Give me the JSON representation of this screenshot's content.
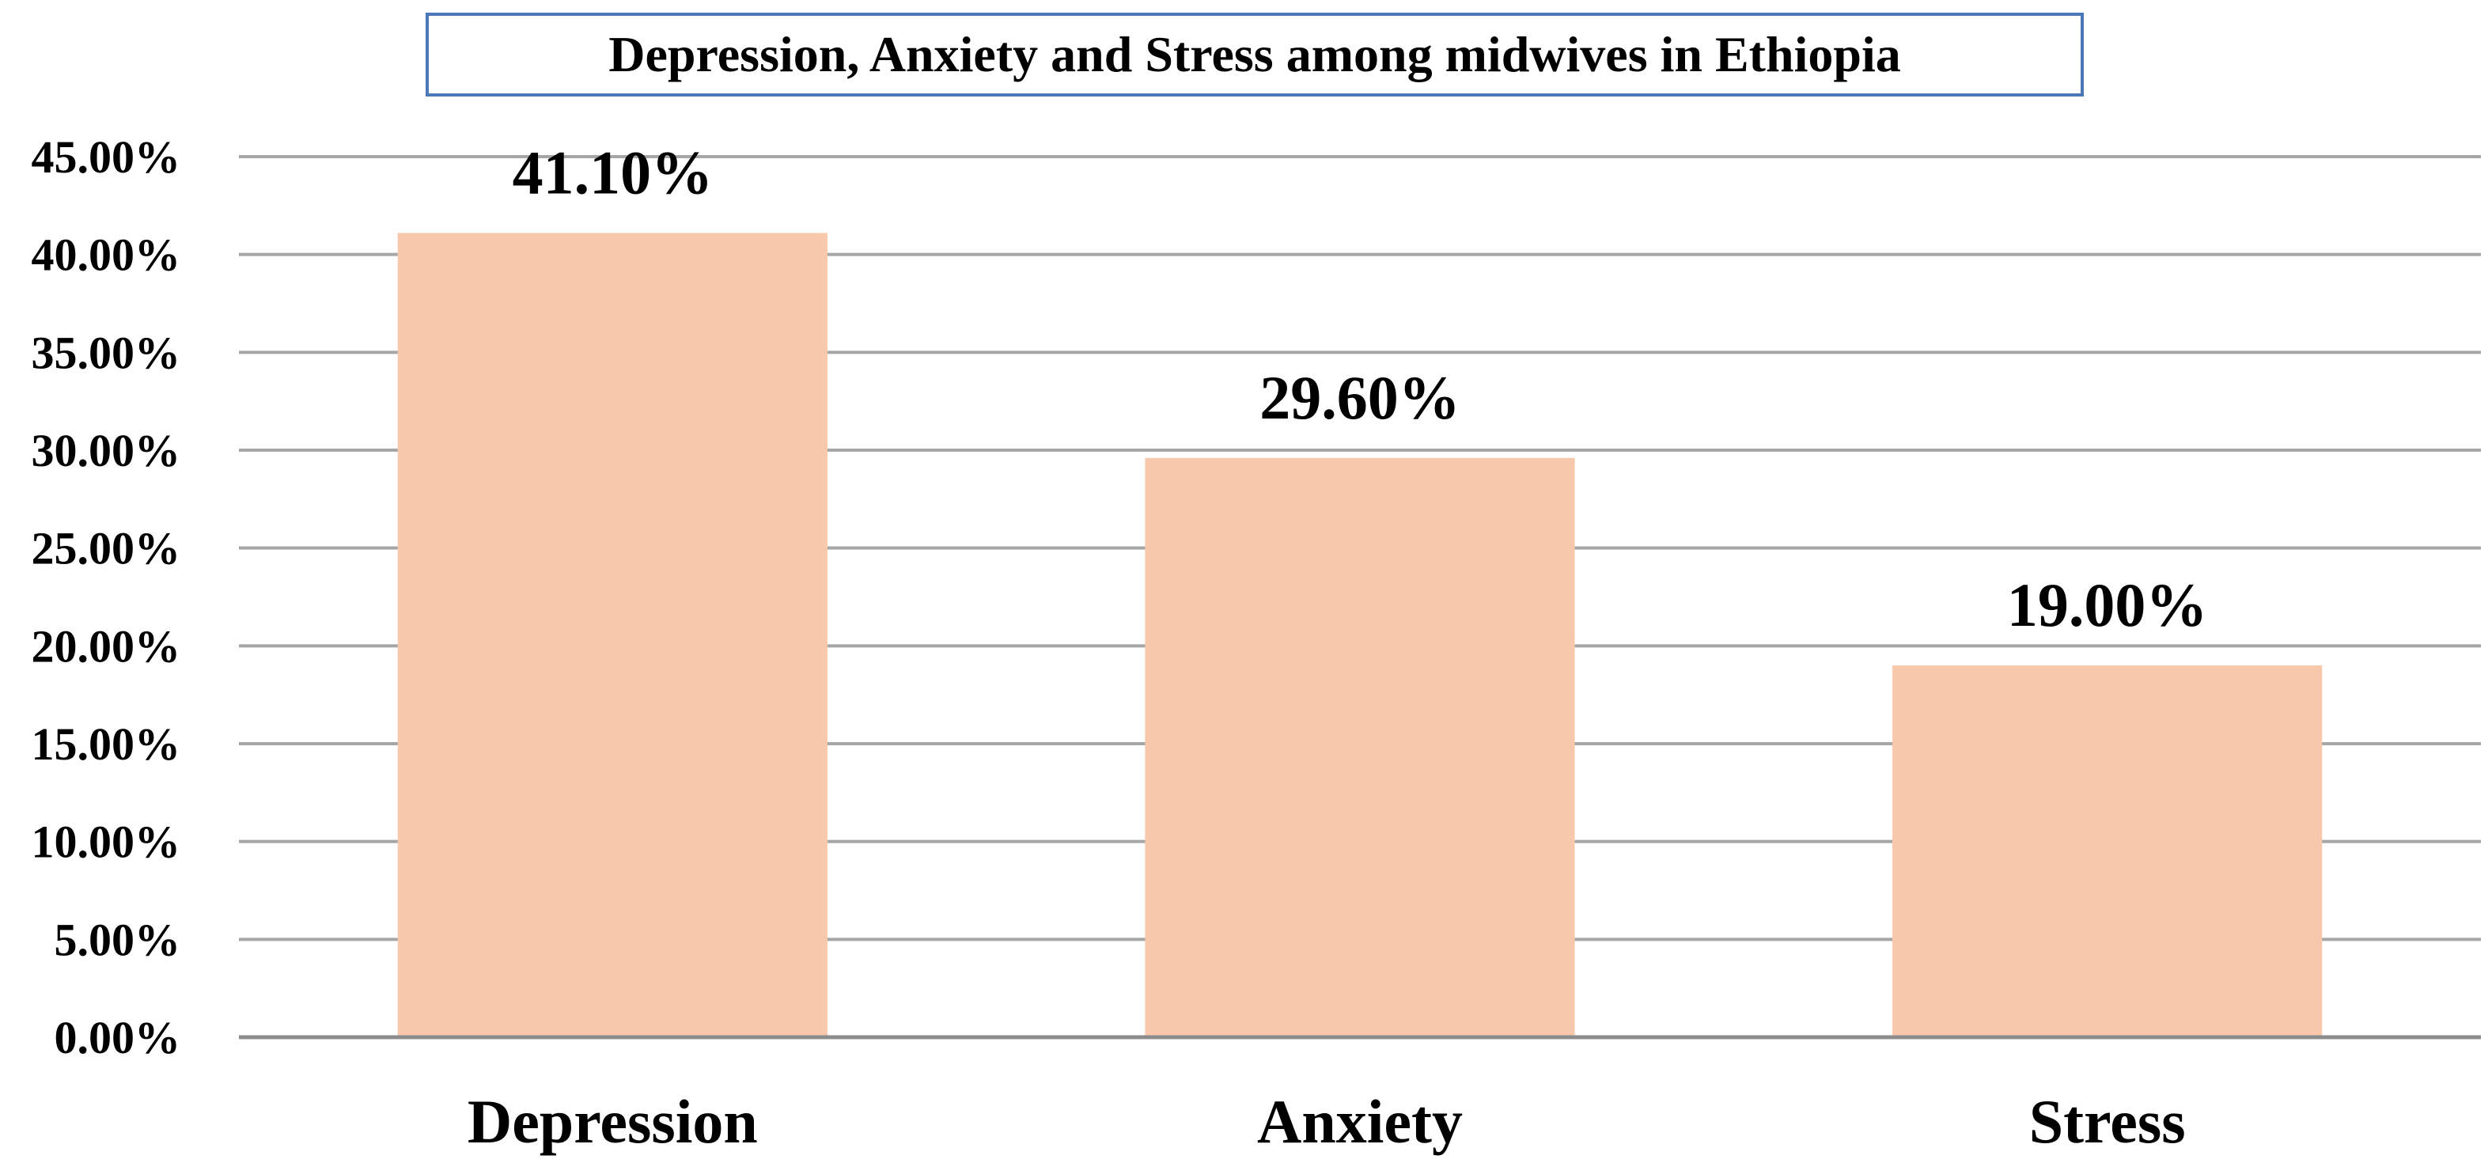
{
  "chart_data": {
    "type": "bar",
    "title": "Depression, Anxiety and Stress among midwives in Ethiopia",
    "categories": [
      "Depression",
      "Anxiety",
      "Stress"
    ],
    "values": [
      41.1,
      29.6,
      19.0
    ],
    "data_labels": [
      "41.10%",
      "29.60%",
      "19.00%"
    ],
    "ylim": [
      0,
      45
    ],
    "y_ticks": [
      0,
      5,
      10,
      15,
      20,
      25,
      30,
      35,
      40,
      45
    ],
    "y_tick_labels": [
      "0.00%",
      "5.00%",
      "10.00%",
      "15.00%",
      "20.00%",
      "25.00%",
      "30.00%",
      "35.00%",
      "40.00%",
      "45.00%"
    ],
    "xlabel": "",
    "ylabel": "",
    "grid": true,
    "legend": "none",
    "colors": {
      "bar": "#f7c8ab",
      "grid": "#a6a6a6",
      "axis": "#8c8c8c",
      "title_border": "#4a78b8"
    }
  }
}
